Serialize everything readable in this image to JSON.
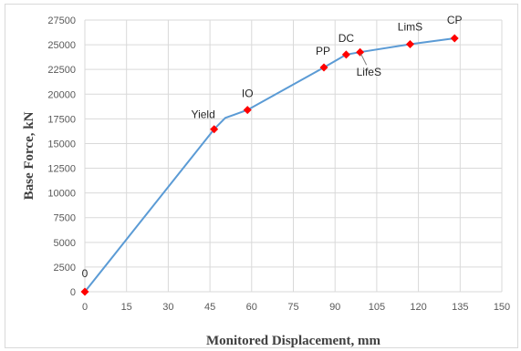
{
  "chart_data": {
    "type": "line",
    "xlabel": "Monitored Displacement, mm",
    "ylabel": "Base Force, kN",
    "xlim": [
      0,
      150
    ],
    "ylim": [
      0,
      27500
    ],
    "xticks": [
      0,
      15,
      30,
      45,
      60,
      75,
      90,
      105,
      120,
      135,
      150
    ],
    "yticks": [
      0,
      2500,
      5000,
      7500,
      10000,
      12500,
      15000,
      17500,
      20000,
      22500,
      25000,
      27500
    ],
    "grid": true,
    "line_color": "#5b9bd5",
    "marker_color": "#ff0000",
    "curve": [
      {
        "x": 0,
        "y": 0
      },
      {
        "x": 46.5,
        "y": 16450
      },
      {
        "x": 50.5,
        "y": 17600
      },
      {
        "x": 58.5,
        "y": 18400
      },
      {
        "x": 86,
        "y": 22700
      },
      {
        "x": 94,
        "y": 24000
      },
      {
        "x": 99,
        "y": 24250
      },
      {
        "x": 117,
        "y": 25050
      },
      {
        "x": 133,
        "y": 25650
      }
    ],
    "points": [
      {
        "label": "0",
        "x": 0,
        "y": 0
      },
      {
        "label": "Yield",
        "x": 46.5,
        "y": 16450
      },
      {
        "label": "IO",
        "x": 58.5,
        "y": 18400
      },
      {
        "label": "PP",
        "x": 86,
        "y": 22700
      },
      {
        "label": "DC",
        "x": 94,
        "y": 24000
      },
      {
        "label": "LifeS",
        "x": 99,
        "y": 24250
      },
      {
        "label": "LimS",
        "x": 117,
        "y": 25050
      },
      {
        "label": "CP",
        "x": 133,
        "y": 25650
      }
    ]
  }
}
